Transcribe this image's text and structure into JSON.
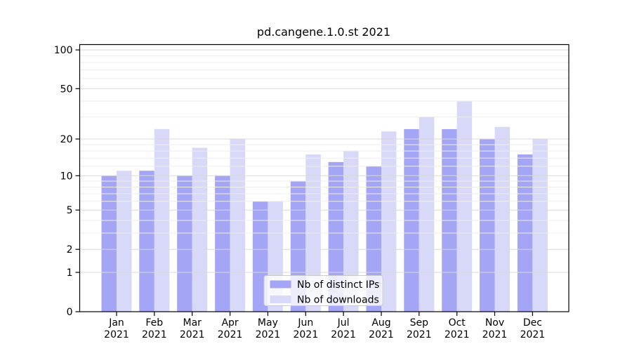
{
  "title": "pd.cangene.1.0.st 2021",
  "chart_data": {
    "type": "bar",
    "title": "pd.cangene.1.0.st 2021",
    "categories": [
      "Jan 2021",
      "Feb 2021",
      "Mar 2021",
      "Apr 2021",
      "May 2021",
      "Jun 2021",
      "Jul 2021",
      "Aug 2021",
      "Sep 2021",
      "Oct 2021",
      "Nov 2021",
      "Dec 2021"
    ],
    "series": [
      {
        "name": "Nb of distinct IPs",
        "color": "#a5a5f5",
        "values": [
          10,
          11,
          10,
          10,
          6,
          9,
          13,
          12,
          24,
          24,
          20,
          15
        ]
      },
      {
        "name": "Nb of downloads",
        "color": "#d8d8f8",
        "values": [
          11,
          24,
          17,
          20,
          6,
          15,
          16,
          23,
          30,
          40,
          25,
          20
        ]
      }
    ],
    "xlabel": "",
    "ylabel": "",
    "yscale": "log1p",
    "ylim": [
      0,
      110
    ],
    "yticks": [
      0,
      1,
      2,
      5,
      10,
      20,
      50,
      100
    ],
    "yticks_minor": [
      3,
      4,
      6,
      7,
      8,
      9,
      12,
      14,
      16,
      18,
      30,
      40,
      60,
      70,
      80,
      90
    ],
    "grid": true,
    "legend_position": "lower center"
  },
  "colors": {
    "axis": "#000000",
    "grid_major": "#d9d9d9",
    "grid_minor": "#ededed",
    "legend_border": "#cccccc",
    "legend_bg": "#ffffff"
  }
}
